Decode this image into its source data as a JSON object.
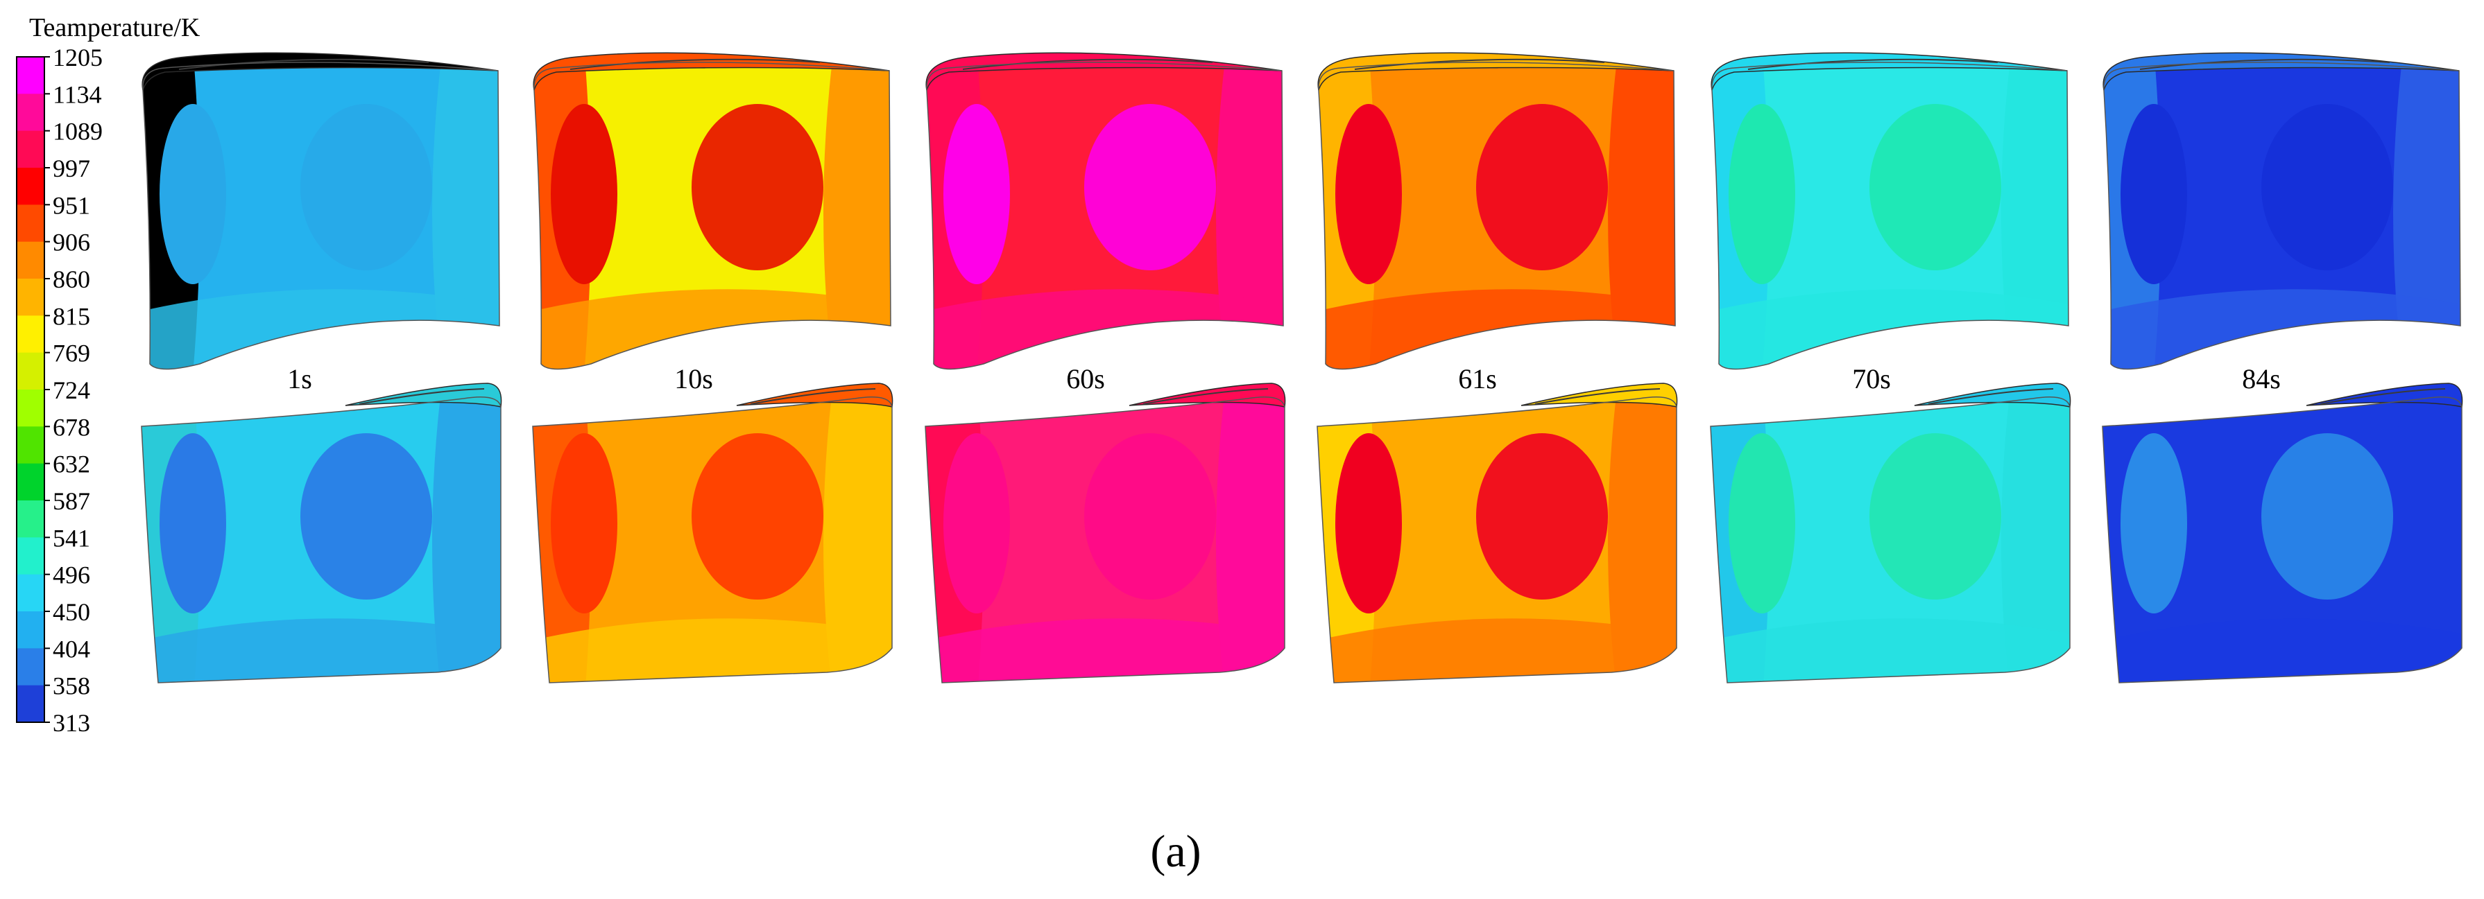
{
  "figure": {
    "legend_title": "Teamperature/K",
    "subfigure_label": "(a)"
  },
  "colorbar": {
    "ticks": [
      "1205",
      "1134",
      "1089",
      "997",
      "951",
      "906",
      "860",
      "815",
      "769",
      "724",
      "678",
      "632",
      "587",
      "541",
      "496",
      "450",
      "404",
      "358",
      "313"
    ],
    "band_colors": [
      "#ff00ff",
      "#ff0a9a",
      "#ff0a55",
      "#ff0000",
      "#ff4a00",
      "#ff8a00",
      "#ffb400",
      "#fff000",
      "#d5f000",
      "#a0ff00",
      "#50e400",
      "#00d32c",
      "#26f08a",
      "#22f0cc",
      "#27d6f5",
      "#22b0f0",
      "#2a7fe8",
      "#1e40d8"
    ]
  },
  "time_labels": [
    "1s",
    "10s",
    "60s",
    "61s",
    "70s",
    "84s"
  ],
  "blades": [
    {
      "time": "1s",
      "row": "top",
      "zones": [
        [
          "cold_edge",
          "#26d6b6"
        ],
        [
          "field",
          "#25b2ee"
        ],
        [
          "bands",
          "#2ac0ea"
        ],
        [
          "core",
          "#28a8e8"
        ]
      ]
    },
    {
      "time": "10s",
      "row": "top",
      "zones": [
        [
          "edge",
          "#ff5000"
        ],
        [
          "field",
          "#f6f000"
        ],
        [
          "bands",
          "#ff9a00"
        ],
        [
          "core",
          "#e81000"
        ]
      ]
    },
    {
      "time": "60s",
      "row": "top",
      "zones": [
        [
          "edge",
          "#ff0a55"
        ],
        [
          "field",
          "#ff1a3a"
        ],
        [
          "bands",
          "#ff0a80"
        ],
        [
          "core",
          "#ff00e8"
        ]
      ]
    },
    {
      "time": "61s",
      "row": "top",
      "zones": [
        [
          "edge",
          "#ffb400"
        ],
        [
          "field",
          "#ff8a00"
        ],
        [
          "bands",
          "#ff4a00"
        ],
        [
          "core",
          "#f00020"
        ]
      ]
    },
    {
      "time": "70s",
      "row": "top",
      "zones": [
        [
          "edge",
          "#22d8ee"
        ],
        [
          "field",
          "#2ae8e6"
        ],
        [
          "bands",
          "#24e6e0"
        ],
        [
          "core",
          "#1ee8b0"
        ]
      ]
    },
    {
      "time": "84s",
      "row": "top",
      "zones": [
        [
          "edge",
          "#2a78e8"
        ],
        [
          "field",
          "#1a38e0"
        ],
        [
          "bands",
          "#2a5be6"
        ],
        [
          "core",
          "#1530d8"
        ]
      ]
    },
    {
      "time": "1s",
      "row": "bottom",
      "zones": [
        [
          "edge",
          "#2acad8"
        ],
        [
          "field",
          "#28ccee"
        ],
        [
          "bands",
          "#28a8e8"
        ],
        [
          "core",
          "#2a7ae6"
        ]
      ]
    },
    {
      "time": "10s",
      "row": "bottom",
      "zones": [
        [
          "edge",
          "#ff5a00"
        ],
        [
          "field",
          "#ffa200"
        ],
        [
          "bands",
          "#ffc400"
        ],
        [
          "core",
          "#ff3800"
        ]
      ]
    },
    {
      "time": "60s",
      "row": "bottom",
      "zones": [
        [
          "edge",
          "#ff0a55"
        ],
        [
          "field",
          "#ff1a78"
        ],
        [
          "bands",
          "#ff0a9a"
        ],
        [
          "core",
          "#ff0a88"
        ]
      ]
    },
    {
      "time": "61s",
      "row": "bottom",
      "zones": [
        [
          "edge",
          "#ffd000"
        ],
        [
          "field",
          "#ffaa00"
        ],
        [
          "bands",
          "#ff7a00"
        ],
        [
          "core",
          "#f00020"
        ]
      ]
    },
    {
      "time": "70s",
      "row": "bottom",
      "zones": [
        [
          "edge",
          "#22c8ea"
        ],
        [
          "field",
          "#2ae4e6"
        ],
        [
          "bands",
          "#26e0e0"
        ],
        [
          "core",
          "#22e6b0"
        ]
      ]
    },
    {
      "time": "84s",
      "row": "bottom",
      "zones": [
        [
          "edge",
          "#1a3ae0"
        ],
        [
          "field",
          "#1a3ae0"
        ],
        [
          "bands",
          "#1a3ae0"
        ],
        [
          "core",
          "#2a8ae8"
        ]
      ]
    }
  ]
}
